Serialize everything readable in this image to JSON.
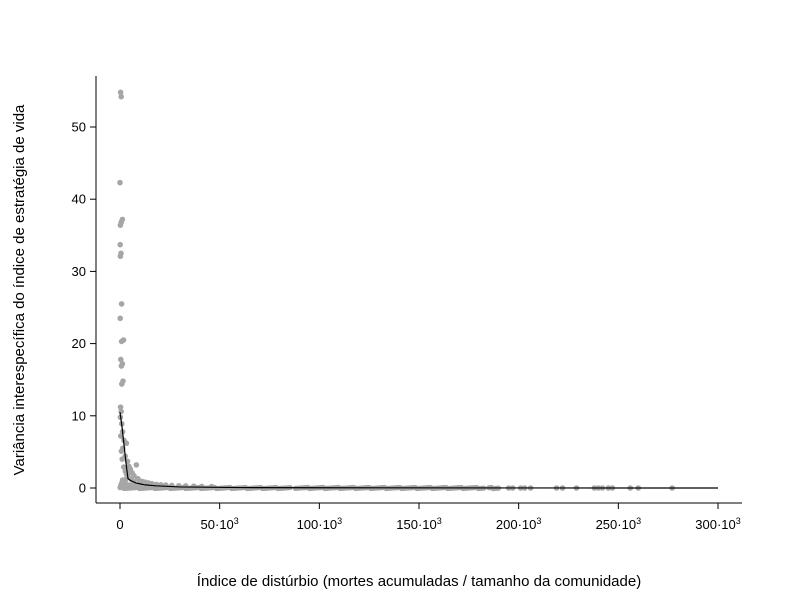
{
  "chart_data": {
    "type": "scatter",
    "title": "",
    "xlabel": "Índice de distúrbio (mortes acumuladas / tamanho da comunidade)",
    "ylabel": "Variância interespecífica do índice de estratégia de vida",
    "xlim": [
      -6000,
      312000
    ],
    "ylim": [
      -2,
      57
    ],
    "grid": false,
    "x_ticks": [
      {
        "value": 0,
        "label": "0"
      },
      {
        "value": 50000,
        "label": "50·10",
        "exp": "3"
      },
      {
        "value": 100000,
        "label": "100·10",
        "exp": "3"
      },
      {
        "value": 150000,
        "label": "150·10",
        "exp": "3"
      },
      {
        "value": 200000,
        "label": "200·10",
        "exp": "3"
      },
      {
        "value": 250000,
        "label": "250·10",
        "exp": "3"
      },
      {
        "value": 300000,
        "label": "300·10",
        "exp": "3"
      }
    ],
    "y_ticks": [
      {
        "value": 0,
        "label": "0"
      },
      {
        "value": 10,
        "label": "10"
      },
      {
        "value": 20,
        "label": "20"
      },
      {
        "value": 30,
        "label": "30"
      },
      {
        "value": 40,
        "label": "40"
      },
      {
        "value": 50,
        "label": "50"
      }
    ],
    "series": [
      {
        "kind": "points",
        "color": "#a6a6a6",
        "points": [
          [
            300,
            54.8
          ],
          [
            600,
            54.2
          ],
          [
            0,
            42.3
          ],
          [
            1200,
            37.2
          ],
          [
            600,
            36.8
          ],
          [
            200,
            36.4
          ],
          [
            100,
            33.7
          ],
          [
            500,
            32.5
          ],
          [
            200,
            32.1
          ],
          [
            800,
            25.5
          ],
          [
            100,
            23.5
          ],
          [
            1800,
            20.5
          ],
          [
            800,
            20.3
          ],
          [
            400,
            17.8
          ],
          [
            1200,
            17.2
          ],
          [
            700,
            16.9
          ],
          [
            1500,
            14.8
          ],
          [
            900,
            14.4
          ],
          [
            300,
            11.2
          ],
          [
            600,
            10.6
          ],
          [
            200,
            9.8
          ],
          [
            900,
            8.9
          ],
          [
            1300,
            7.8
          ],
          [
            400,
            7.2
          ],
          [
            2000,
            6.6
          ],
          [
            3200,
            6.2
          ],
          [
            1400,
            5.5
          ],
          [
            700,
            5.1
          ],
          [
            2600,
            4.4
          ],
          [
            1100,
            4.0
          ],
          [
            3800,
            3.7
          ],
          [
            8200,
            3.2
          ],
          [
            4500,
            3.0
          ],
          [
            1900,
            2.9
          ],
          [
            5200,
            2.6
          ],
          [
            2700,
            2.3
          ],
          [
            6100,
            2.1
          ],
          [
            3300,
            1.9
          ],
          [
            7000,
            1.7
          ],
          [
            4100,
            1.5
          ],
          [
            8900,
            1.3
          ],
          [
            5700,
            1.2
          ],
          [
            9800,
            1.0
          ],
          [
            1300,
            1.1
          ],
          [
            11200,
            0.9
          ],
          [
            12600,
            0.8
          ],
          [
            6800,
            0.9
          ],
          [
            14300,
            0.7
          ],
          [
            16000,
            0.6
          ],
          [
            18200,
            0.5
          ],
          [
            10400,
            0.6
          ],
          [
            20500,
            0.45
          ],
          [
            23000,
            0.4
          ],
          [
            15500,
            0.45
          ],
          [
            26000,
            0.35
          ],
          [
            29500,
            0.3
          ],
          [
            33000,
            0.28
          ],
          [
            37000,
            0.25
          ],
          [
            41000,
            0.22
          ],
          [
            46000,
            0.2
          ],
          [
            500,
            0.4
          ],
          [
            900,
            0.7
          ],
          [
            1500,
            0.3
          ],
          [
            2400,
            0.8
          ],
          [
            3000,
            0.5
          ],
          [
            4800,
            0.4
          ],
          [
            6300,
            0.3
          ],
          [
            7600,
            0.5
          ],
          [
            9100,
            0.3
          ],
          [
            200,
            0.1
          ],
          [
            2900,
            1.2
          ],
          [
            4300,
            2.1
          ]
        ]
      },
      {
        "kind": "x_band",
        "note": "dense points along y≈0 over these x ranges",
        "color": "#a6a6a6",
        "y": 0,
        "ranges": [
          [
            0,
            86000
          ],
          [
            88000,
            183000
          ],
          [
            185000,
            190000
          ]
        ]
      },
      {
        "kind": "points",
        "color": "#a6a6a6",
        "points": [
          [
            195000,
            0
          ],
          [
            197000,
            0
          ],
          [
            201000,
            0
          ],
          [
            203000,
            0
          ],
          [
            206000,
            0
          ],
          [
            219000,
            0
          ],
          [
            222000,
            0
          ],
          [
            229000,
            0
          ],
          [
            238000,
            0
          ],
          [
            240000,
            0
          ],
          [
            242000,
            0
          ],
          [
            245000,
            0
          ],
          [
            247000,
            0
          ],
          [
            256000,
            0
          ],
          [
            260000,
            0
          ],
          [
            277000,
            0
          ]
        ]
      },
      {
        "kind": "line",
        "color": "#000000",
        "points": [
          [
            0,
            10.5
          ],
          [
            1000,
            8.5
          ],
          [
            2000,
            6.0
          ],
          [
            3000,
            3.5
          ],
          [
            4000,
            1.3
          ],
          [
            5500,
            1.0
          ],
          [
            8000,
            0.7
          ],
          [
            12000,
            0.45
          ],
          [
            18000,
            0.3
          ],
          [
            30000,
            0.15
          ],
          [
            60000,
            0.06
          ],
          [
            100000,
            0.03
          ],
          [
            200000,
            0.01
          ],
          [
            300000,
            0.0
          ]
        ]
      }
    ]
  }
}
